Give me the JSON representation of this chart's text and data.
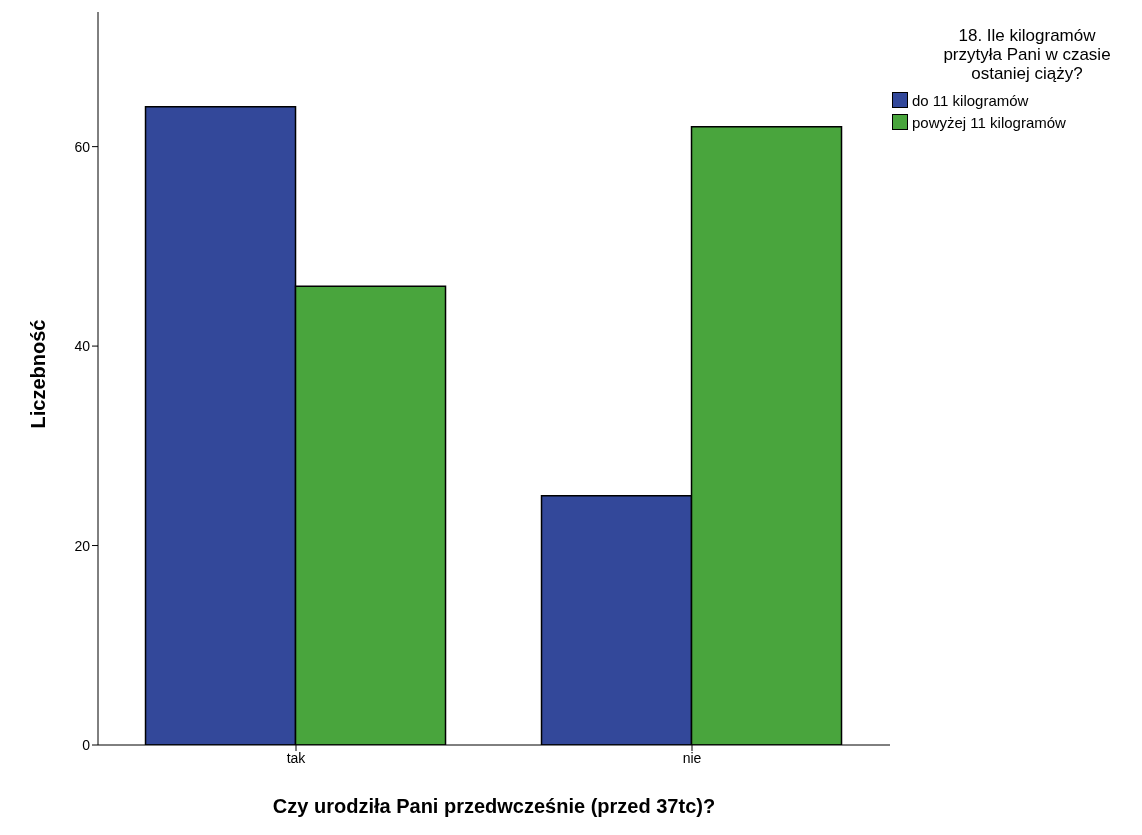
{
  "chart_data": {
    "type": "bar",
    "xlabel": "Czy urodziła Pani przedwcześnie (przed 37tc)?",
    "ylabel": "Liczebność",
    "legend_title": "18. Ile kilogramów przytyła Pani w czasie ostaniej ciąży?",
    "categories": [
      "tak",
      "nie"
    ],
    "series": [
      {
        "name": "do 11 kilogramów",
        "color": "#33489a",
        "values": [
          64,
          25
        ]
      },
      {
        "name": "powyżej 11 kilogramów",
        "color": "#49a53d",
        "values": [
          46,
          62
        ]
      }
    ],
    "ylim": [
      0,
      73.5
    ],
    "yticks": [
      0,
      20,
      40,
      60
    ],
    "grid": false,
    "legend": "right"
  }
}
